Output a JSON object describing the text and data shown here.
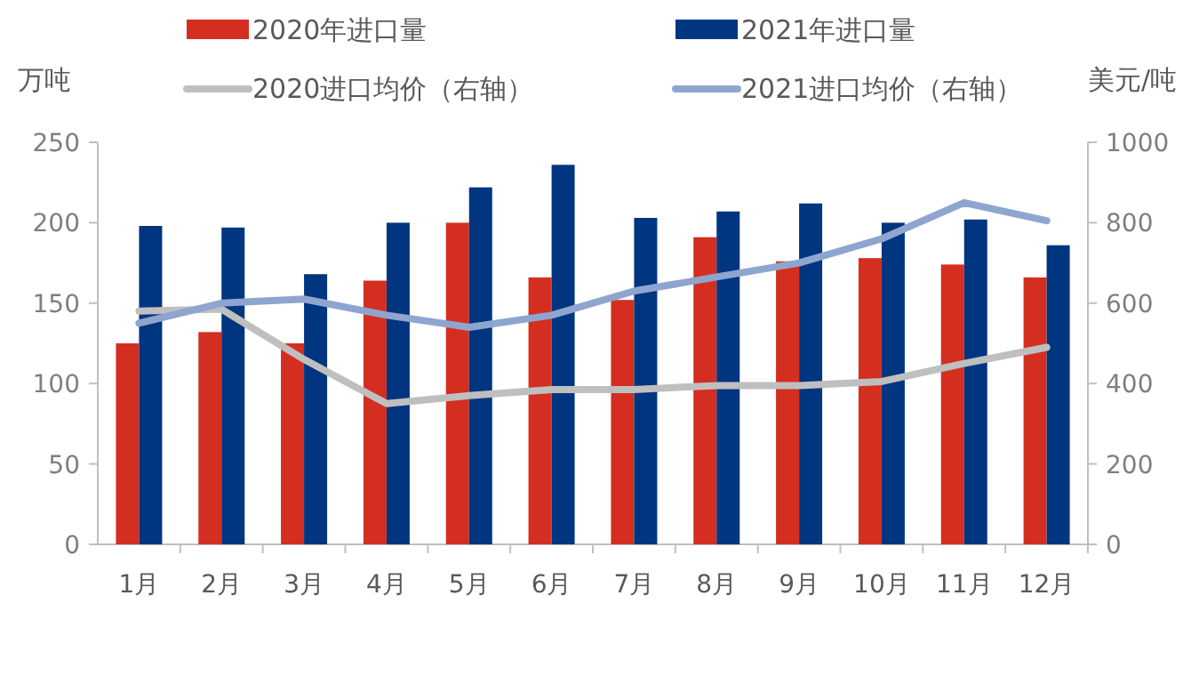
{
  "chart_data": {
    "type": "bar",
    "ylabel": "万吨",
    "y2label": "美元/吨",
    "categories": [
      "1月",
      "2月",
      "3月",
      "4月",
      "5月",
      "6月",
      "7月",
      "8月",
      "9月",
      "10月",
      "11月",
      "12月"
    ],
    "series": [
      {
        "name": "2020年进口量",
        "color": "#d42e20",
        "values": [
          125,
          132,
          125,
          164,
          200,
          166,
          152,
          191,
          176,
          178,
          174,
          166
        ]
      },
      {
        "name": "2021年进口量",
        "color": "#003580",
        "values": [
          198,
          197,
          168,
          200,
          222,
          236,
          203,
          207,
          212,
          200,
          202,
          186
        ]
      },
      {
        "name": "2020进口均价（右轴）",
        "type": "line",
        "axis": "y2",
        "color": "#bfbfbf",
        "values": [
          580,
          585,
          460,
          350,
          370,
          385,
          385,
          395,
          395,
          405,
          450,
          490
        ]
      },
      {
        "name": "2021进口均价（右轴）",
        "type": "line",
        "axis": "y2",
        "color": "#8ea5cf",
        "values": [
          550,
          600,
          610,
          570,
          540,
          570,
          630,
          665,
          700,
          760,
          850,
          805
        ]
      }
    ],
    "ylim": [
      0,
      250
    ],
    "yticks": [
      0,
      50,
      100,
      150,
      200,
      250
    ],
    "y2lim": [
      0,
      1000
    ],
    "y2ticks": [
      0,
      200,
      400,
      600,
      800,
      1000
    ],
    "legend": "top",
    "grid": false
  }
}
